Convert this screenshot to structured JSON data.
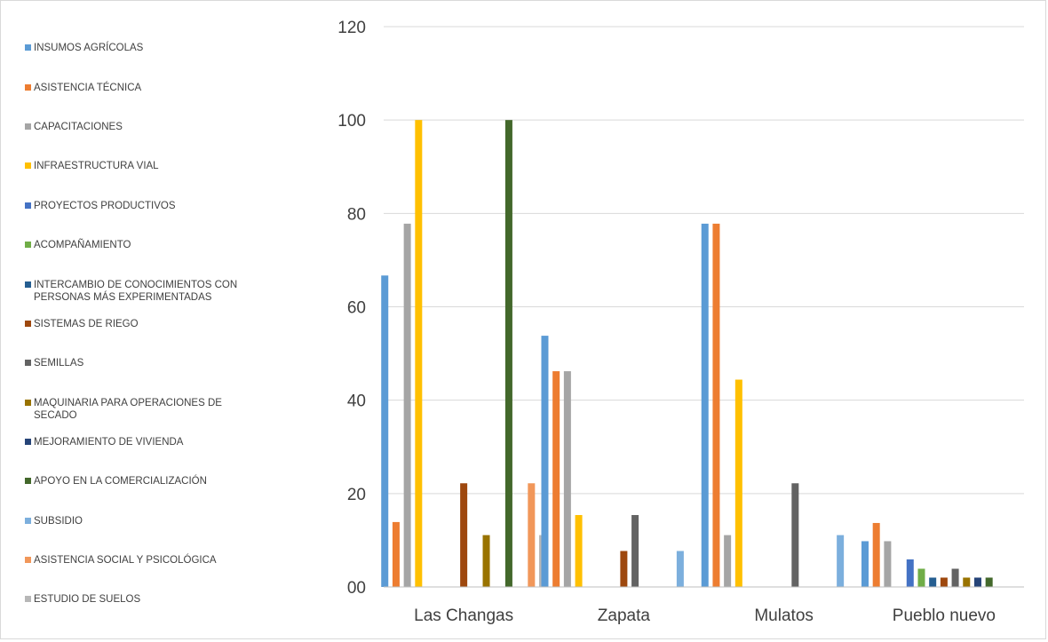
{
  "chart_data": {
    "type": "bar",
    "title": "",
    "xlabel": "",
    "ylabel": "",
    "ylim": [
      0,
      120
    ],
    "yticks": [
      "00",
      "20",
      "40",
      "60",
      "80",
      "100",
      "120"
    ],
    "grid": true,
    "legend_position": "left",
    "categories": [
      "Las Changas",
      "Zapata",
      "Mulatos",
      "Pueblo nuevo"
    ],
    "series": [
      {
        "name": "INSUMOS AGRÍCOLAS",
        "color": "#5b9bd5",
        "values": [
          66.7,
          53.8,
          77.8,
          9.8
        ]
      },
      {
        "name": "ASISTENCIA TÉCNICA",
        "color": "#ed7d31",
        "values": [
          13.9,
          46.2,
          77.8,
          13.7
        ]
      },
      {
        "name": "CAPACITACIONES",
        "color": "#a5a5a5",
        "values": [
          77.8,
          46.2,
          11.1,
          9.8
        ]
      },
      {
        "name": "INFRAESTRUCTURA VIAL",
        "color": "#ffc000",
        "values": [
          100,
          15.4,
          44.4,
          0
        ]
      },
      {
        "name": "PROYECTOS PRODUCTIVOS",
        "color": "#4472c4",
        "values": [
          0,
          0,
          0,
          5.9
        ]
      },
      {
        "name": "ACOMPAÑAMIENTO",
        "color": "#70ad47",
        "values": [
          0,
          0,
          0,
          3.9
        ]
      },
      {
        "name": "INTERCAMBIO DE CONOCIMIENTOS CON PERSONAS MÁS EXPERIMENTADAS",
        "color": "#255e91",
        "values": [
          0,
          0,
          0,
          2
        ]
      },
      {
        "name": "SISTEMAS DE RIEGO",
        "color": "#9e480e",
        "values": [
          22.2,
          7.7,
          0,
          2
        ]
      },
      {
        "name": "SEMILLAS",
        "color": "#636363",
        "values": [
          0,
          15.4,
          22.2,
          3.9
        ]
      },
      {
        "name": "MAQUINARIA PARA OPERACIONES DE SECADO",
        "color": "#997300",
        "values": [
          11.1,
          0,
          0,
          2
        ]
      },
      {
        "name": "MEJORAMIENTO DE VIVIENDA",
        "color": "#264478",
        "values": [
          0,
          0,
          0,
          2
        ]
      },
      {
        "name": "APOYO EN LA COMERCIALIZACIÓN",
        "color": "#43682b",
        "values": [
          100,
          0,
          0,
          2
        ]
      },
      {
        "name": "SUBSIDIO",
        "color": "#7cafdd",
        "values": [
          0,
          7.7,
          11.1,
          0
        ]
      },
      {
        "name": "ASISTENCIA SOCIAL Y PSICOLÓGICA",
        "color": "#f1975a",
        "values": [
          22.2,
          0,
          0,
          0
        ]
      },
      {
        "name": "ESTUDIO DE SUELOS",
        "color": "#b7b7b7",
        "values": [
          11.1,
          0,
          0,
          0
        ]
      }
    ]
  }
}
